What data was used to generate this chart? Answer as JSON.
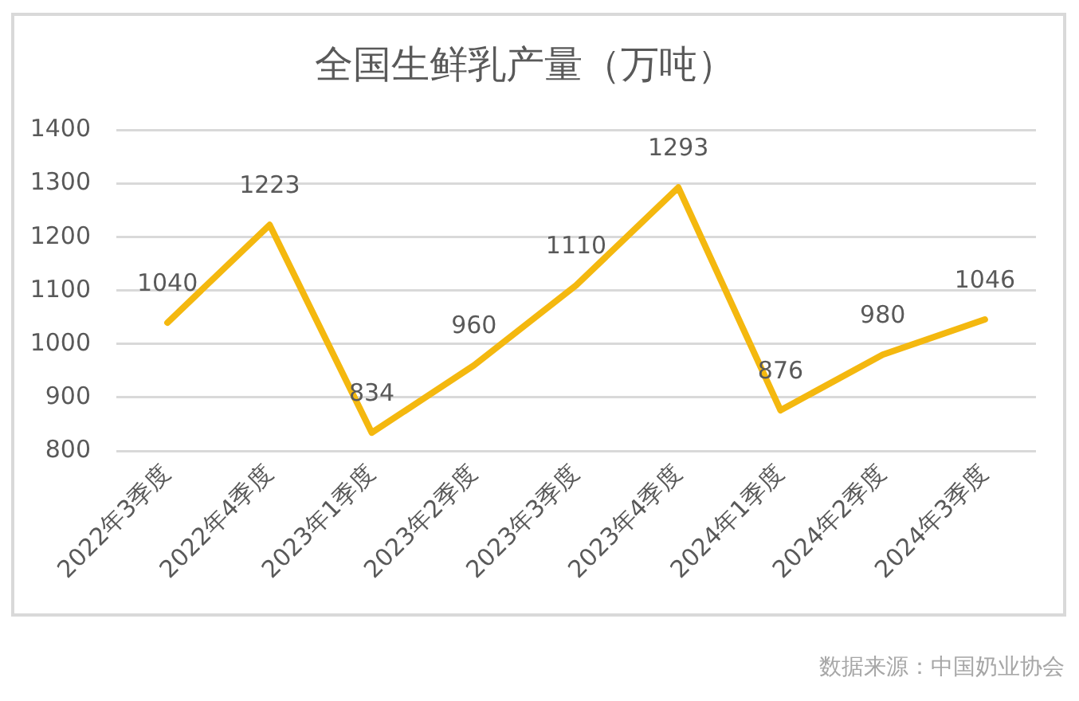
{
  "chart_data": {
    "type": "line",
    "title": "全国生鲜乳产量（万吨）",
    "categories": [
      "2022年3季度",
      "2022年4季度",
      "2023年1季度",
      "2023年2季度",
      "2023年3季度",
      "2023年4季度",
      "2024年1季度",
      "2024年2季度",
      "2024年3季度"
    ],
    "series": [
      {
        "color": "#f4b80f",
        "values": [
          1040,
          1223,
          834,
          960,
          1110,
          1293,
          876,
          980,
          1046
        ]
      }
    ],
    "ylim": [
      800,
      1400
    ],
    "yticks": [
      800,
      900,
      1000,
      1100,
      1200,
      1300,
      1400
    ],
    "grid": "y",
    "data_labels": true,
    "marker": "none",
    "annotations": [
      "数据来源：中国奶业协会"
    ]
  }
}
